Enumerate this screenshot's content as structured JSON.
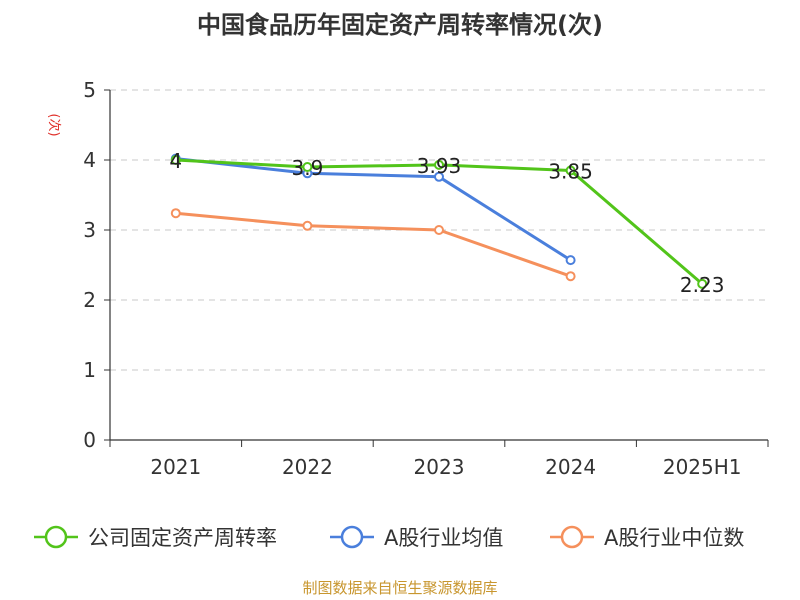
{
  "chart_data": {
    "type": "line",
    "title": "中国食品历年固定资产周转率情况(次)",
    "ylabel": "(次)",
    "categories": [
      "2021",
      "2022",
      "2023",
      "2024",
      "2025H1"
    ],
    "ylim": [
      0,
      5
    ],
    "yticks": [
      0,
      1,
      2,
      3,
      4,
      5
    ],
    "grid": true,
    "legend_position": "bottom",
    "series": [
      {
        "name": "公司固定资产周转率",
        "color": "#52c41a",
        "values": [
          4.0,
          3.9,
          3.93,
          3.85,
          2.23
        ],
        "labels": [
          "4",
          "3.9",
          "3.93",
          "3.85",
          "2.23"
        ]
      },
      {
        "name": "A股行业均值",
        "color": "#4a7fdc",
        "values": [
          4.02,
          3.81,
          3.76,
          2.57,
          null
        ]
      },
      {
        "name": "A股行业中位数",
        "color": "#f5905c",
        "values": [
          3.24,
          3.06,
          3.0,
          2.34,
          null
        ]
      }
    ]
  },
  "source_text": "制图数据来自恒生聚源数据库",
  "source_color": "#c8962e",
  "ylabel_color": "#e0302a"
}
